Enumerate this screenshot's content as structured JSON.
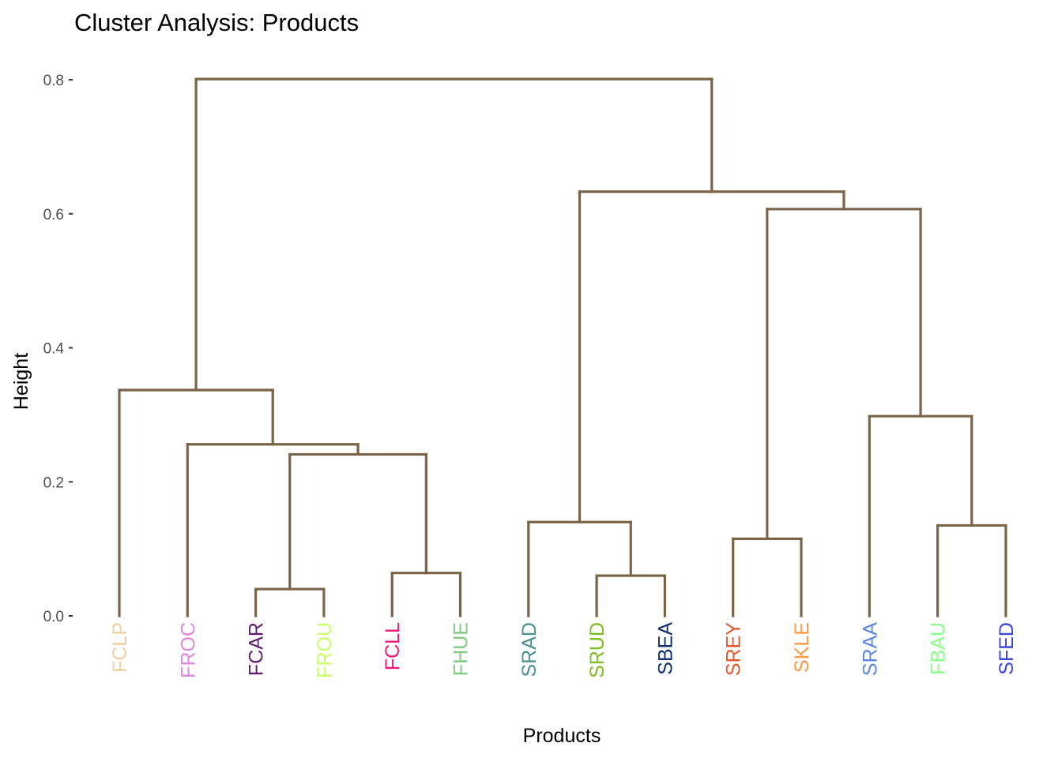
{
  "chart_data": {
    "type": "dendrogram",
    "title": "Cluster Analysis: Products",
    "xlabel": "Products",
    "ylabel": "Height",
    "ylim": [
      0,
      0.8
    ],
    "yticks": [
      0.0,
      0.2,
      0.4,
      0.6,
      0.8
    ],
    "ytick_labels": [
      "0.0",
      "0.2",
      "0.4",
      "0.6",
      "0.8"
    ],
    "grid": false,
    "line_color": "#7a6448",
    "leaves": [
      {
        "label": "FCLP",
        "color": "#f0cfa0"
      },
      {
        "label": "FROC",
        "color": "#dd88dd"
      },
      {
        "label": "FCAR",
        "color": "#5f1d6e"
      },
      {
        "label": "FROU",
        "color": "#c8ff66"
      },
      {
        "label": "FCLL",
        "color": "#f0197a"
      },
      {
        "label": "FHUE",
        "color": "#7fc97f"
      },
      {
        "label": "SRAD",
        "color": "#4a8f8f"
      },
      {
        "label": "SRUD",
        "color": "#7cbf1f"
      },
      {
        "label": "SBEA",
        "color": "#0e2f6b"
      },
      {
        "label": "SREY",
        "color": "#e4572e"
      },
      {
        "label": "SKLE",
        "color": "#ff9944"
      },
      {
        "label": "SRAA",
        "color": "#5a86e0"
      },
      {
        "label": "FBAU",
        "color": "#8aff8a"
      },
      {
        "label": "SFED",
        "color": "#3b44d6"
      }
    ],
    "merges": [
      {
        "left": "FCAR",
        "right": "FROU",
        "height": 0.04
      },
      {
        "left": "FCLL",
        "right": "FHUE",
        "height": 0.064
      },
      {
        "left": "m0",
        "right": "m1",
        "height": 0.241
      },
      {
        "left": "FROC",
        "right": "m2",
        "height": 0.256
      },
      {
        "left": "FCLP",
        "right": "m3",
        "height": 0.337
      },
      {
        "left": "SRUD",
        "right": "SBEA",
        "height": 0.06
      },
      {
        "left": "SRAD",
        "right": "m5",
        "height": 0.14
      },
      {
        "left": "SREY",
        "right": "SKLE",
        "height": 0.115
      },
      {
        "left": "FBAU",
        "right": "SFED",
        "height": 0.135
      },
      {
        "left": "SRAA",
        "right": "m8",
        "height": 0.298
      },
      {
        "left": "m7",
        "right": "m9",
        "height": 0.607
      },
      {
        "left": "m6",
        "right": "m10",
        "height": 0.633
      },
      {
        "left": "m4",
        "right": "m11",
        "height": 0.801
      }
    ]
  }
}
